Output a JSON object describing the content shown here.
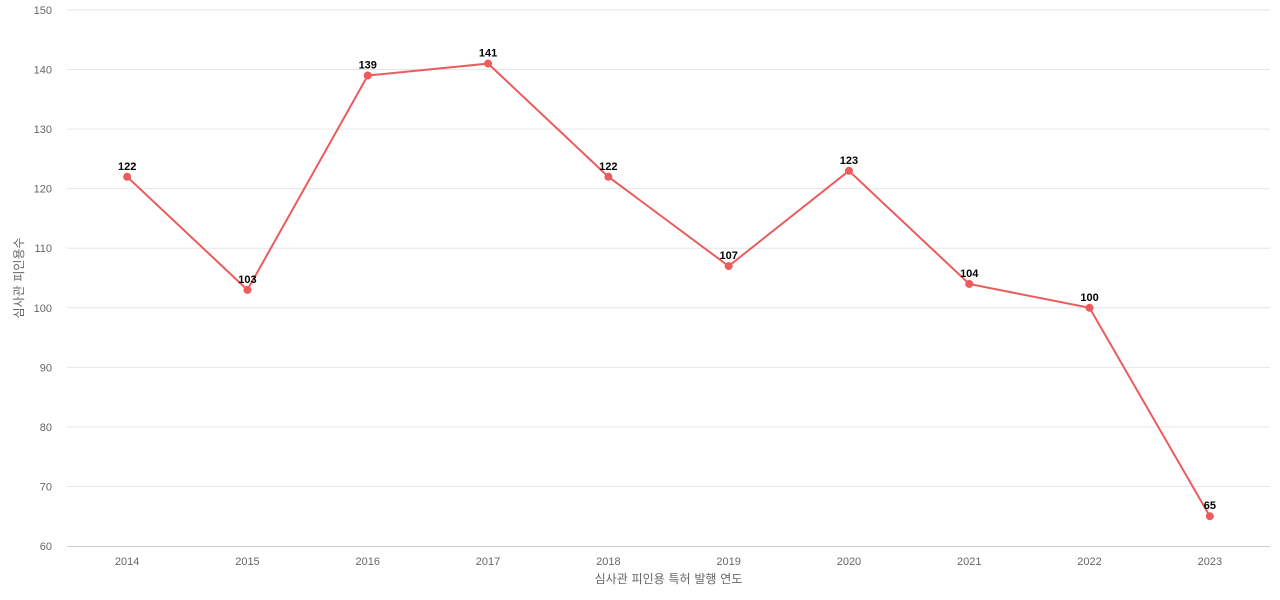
{
  "chart_data": {
    "type": "line",
    "title": "",
    "xlabel": "심사관 피인용 특허 발행 연도",
    "ylabel": "심사관 피인용수",
    "categories": [
      "2014",
      "2015",
      "2016",
      "2017",
      "2018",
      "2019",
      "2020",
      "2021",
      "2022",
      "2023"
    ],
    "series": [
      {
        "values": [
          122,
          103,
          139,
          141,
          122,
          107,
          123,
          104,
          100,
          65
        ],
        "color": "#eb5c5c"
      }
    ],
    "ylim": [
      60,
      150
    ],
    "yticks": [
      60,
      70,
      80,
      90,
      100,
      110,
      120,
      130,
      140,
      150
    ],
    "grid": true,
    "legend": "none",
    "data_labels": true
  }
}
